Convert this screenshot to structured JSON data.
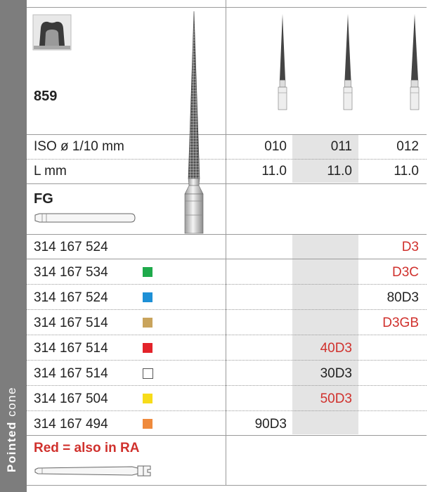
{
  "side_label": {
    "bold": "Pointed",
    "regular": "cone"
  },
  "product": {
    "number": "859"
  },
  "header_rows": [
    {
      "label": "ISO ø 1/10 mm",
      "values": [
        "010",
        "011",
        "012"
      ]
    },
    {
      "label": "L mm",
      "values": [
        "11.0",
        "11.0",
        "11.0"
      ]
    }
  ],
  "shank": {
    "label": "FG"
  },
  "rows": [
    {
      "code": "314 167 524",
      "swatch": "",
      "col": 2,
      "value": "D3",
      "red": true
    },
    {
      "code": "314 167 534",
      "swatch": "#1faa4b",
      "col": 2,
      "value": "D3C",
      "red": true
    },
    {
      "code": "314 167 524",
      "swatch": "#1e90d6",
      "col": 2,
      "value": "80D3",
      "red": false
    },
    {
      "code": "314 167 514",
      "swatch": "#c9a45c",
      "col": 2,
      "value": "D3GB",
      "red": true
    },
    {
      "code": "314 167 514",
      "swatch": "#e3232a",
      "col": 1,
      "value": "40D3",
      "red": true
    },
    {
      "code": "314 167 514",
      "swatch": "outline",
      "col": 1,
      "value": "30D3",
      "red": false
    },
    {
      "code": "314 167 504",
      "swatch": "#f7dc1a",
      "col": 1,
      "value": "50D3",
      "red": true
    },
    {
      "code": "314 167 494",
      "swatch": "#ef8a3c",
      "col": 0,
      "value": "90D3",
      "red": false
    }
  ],
  "footer_note": "Red = also in RA"
}
